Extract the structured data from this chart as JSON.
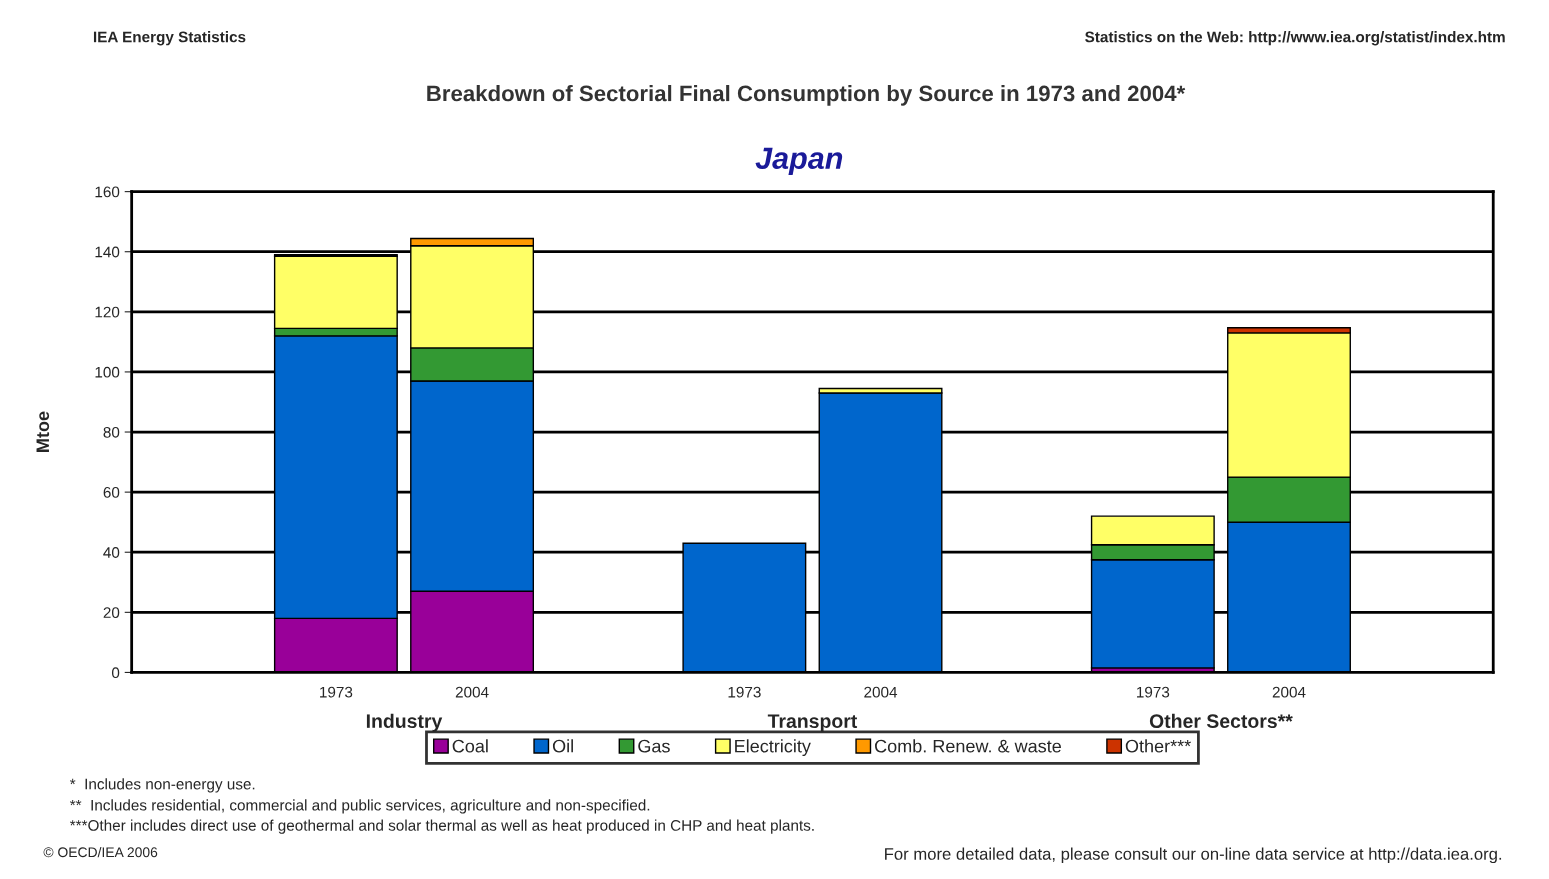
{
  "chart_data": {
    "type": "bar",
    "title": "Breakdown of Sectorial Final Consumption by Source in 1973 and 2004*",
    "subtitle": "Japan",
    "ylabel": "Mtoe",
    "categories": [
      null,
      "1973",
      "2004",
      null,
      "1973",
      "2004",
      null,
      "1973",
      "2004",
      null
    ],
    "stacked": true,
    "series": [
      {
        "name": "Coal",
        "color": "#990099",
        "values": [
          null,
          18,
          27,
          null,
          null,
          null,
          null,
          1.5,
          null,
          null
        ]
      },
      {
        "name": "Oil",
        "color": "#0066cc",
        "values": [
          null,
          94,
          70,
          null,
          43,
          93,
          null,
          36,
          50,
          null
        ]
      },
      {
        "name": "Gas",
        "color": "#339933",
        "values": [
          null,
          2.5,
          11,
          null,
          null,
          null,
          null,
          5,
          15,
          null
        ]
      },
      {
        "name": "Electricity",
        "color": "#ffff66",
        "values": [
          null,
          24,
          34,
          null,
          null,
          1.5,
          null,
          9.5,
          48,
          null
        ]
      },
      {
        "name": "Comb. Renew. & waste",
        "color": "#ff9900",
        "values": [
          null,
          0.5,
          2.4,
          null,
          null,
          null,
          null,
          null,
          null,
          null
        ]
      },
      {
        "name": "Other***",
        "color": "#cc3300",
        "values": [
          null,
          null,
          null,
          null,
          null,
          null,
          null,
          null,
          1.7,
          null
        ]
      }
    ],
    "ylim": [
      0,
      160
    ],
    "yticks": [
      0,
      20,
      40,
      60,
      80,
      100,
      120,
      140,
      160
    ],
    "grid": "y",
    "legend": "bottom",
    "annotations": [
      "IEA Energy Statistics",
      "Statistics on the Web: http://www.iea.org/statist/index.htm",
      "Industry",
      "Transport",
      "Other Sectors**",
      "*  Includes non-energy use.",
      "**  Includes residential, commercial and public services, agriculture and non-specified.",
      "***Other includes direct use of geothermal and solar thermal as well as heat produced in CHP and heat plants.",
      "© OECD/IEA 2006",
      "For more detailed data, please consult our on-line data service at http://data.iea.org."
    ]
  }
}
